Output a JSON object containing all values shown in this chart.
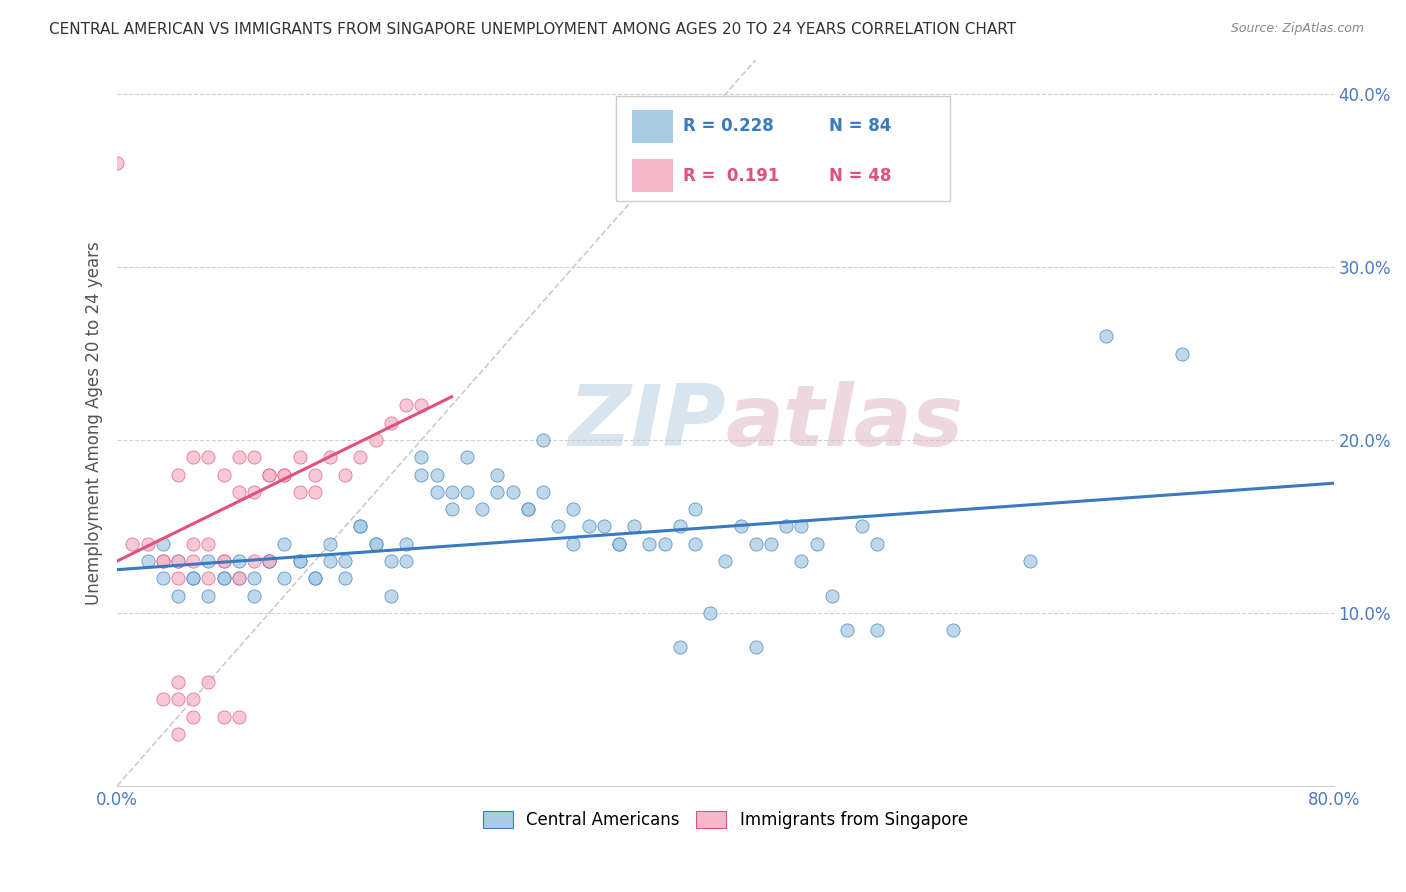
{
  "title": "CENTRAL AMERICAN VS IMMIGRANTS FROM SINGAPORE UNEMPLOYMENT AMONG AGES 20 TO 24 YEARS CORRELATION CHART",
  "source": "Source: ZipAtlas.com",
  "ylabel": "Unemployment Among Ages 20 to 24 years",
  "xlim": [
    0.0,
    0.8
  ],
  "ylim": [
    0.0,
    0.42
  ],
  "xticks": [
    0.0,
    0.1,
    0.2,
    0.3,
    0.4,
    0.5,
    0.6,
    0.7,
    0.8
  ],
  "xticklabels": [
    "0.0%",
    "",
    "",
    "",
    "",
    "",
    "",
    "",
    "80.0%"
  ],
  "yticks": [
    0.0,
    0.1,
    0.2,
    0.3,
    0.4
  ],
  "yticklabels": [
    "",
    "10.0%",
    "20.0%",
    "30.0%",
    "40.0%"
  ],
  "color_blue": "#a8cce4",
  "color_pink": "#f4b8c8",
  "line_blue": "#3a7bbf",
  "line_pink": "#e05080",
  "diag_color": "#cccccc",
  "watermark_color": "#d0dce8",
  "watermark_color2": "#e8d0d8",
  "blue_scatter_x": [
    0.02,
    0.03,
    0.04,
    0.05,
    0.06,
    0.07,
    0.08,
    0.09,
    0.1,
    0.11,
    0.12,
    0.13,
    0.14,
    0.15,
    0.16,
    0.17,
    0.18,
    0.19,
    0.2,
    0.21,
    0.22,
    0.23,
    0.24,
    0.25,
    0.26,
    0.27,
    0.28,
    0.29,
    0.3,
    0.31,
    0.32,
    0.33,
    0.34,
    0.35,
    0.36,
    0.37,
    0.38,
    0.39,
    0.4,
    0.41,
    0.42,
    0.43,
    0.44,
    0.45,
    0.46,
    0.47,
    0.48,
    0.49,
    0.5,
    0.55,
    0.6,
    0.65,
    0.7,
    0.03,
    0.04,
    0.05,
    0.06,
    0.07,
    0.08,
    0.09,
    0.1,
    0.11,
    0.12,
    0.13,
    0.14,
    0.15,
    0.16,
    0.17,
    0.18,
    0.19,
    0.2,
    0.21,
    0.22,
    0.23,
    0.25,
    0.27,
    0.3,
    0.33,
    0.37,
    0.42,
    0.5,
    0.38,
    0.45,
    0.28
  ],
  "blue_scatter_y": [
    0.13,
    0.14,
    0.13,
    0.12,
    0.13,
    0.12,
    0.13,
    0.12,
    0.13,
    0.14,
    0.13,
    0.12,
    0.14,
    0.13,
    0.15,
    0.14,
    0.13,
    0.14,
    0.18,
    0.17,
    0.16,
    0.17,
    0.16,
    0.18,
    0.17,
    0.16,
    0.17,
    0.15,
    0.16,
    0.15,
    0.15,
    0.14,
    0.15,
    0.14,
    0.14,
    0.15,
    0.14,
    0.1,
    0.13,
    0.15,
    0.14,
    0.14,
    0.15,
    0.13,
    0.14,
    0.11,
    0.09,
    0.15,
    0.14,
    0.09,
    0.13,
    0.26,
    0.25,
    0.12,
    0.11,
    0.12,
    0.11,
    0.12,
    0.12,
    0.11,
    0.13,
    0.12,
    0.13,
    0.12,
    0.13,
    0.12,
    0.15,
    0.14,
    0.11,
    0.13,
    0.19,
    0.18,
    0.17,
    0.19,
    0.17,
    0.16,
    0.14,
    0.14,
    0.08,
    0.08,
    0.09,
    0.16,
    0.15,
    0.2
  ],
  "pink_scatter_x": [
    0.0,
    0.01,
    0.02,
    0.03,
    0.04,
    0.05,
    0.06,
    0.07,
    0.08,
    0.09,
    0.1,
    0.11,
    0.12,
    0.13,
    0.14,
    0.15,
    0.16,
    0.17,
    0.18,
    0.19,
    0.2,
    0.04,
    0.05,
    0.06,
    0.07,
    0.08,
    0.09,
    0.1,
    0.11,
    0.12,
    0.13,
    0.03,
    0.04,
    0.05,
    0.06,
    0.07,
    0.08,
    0.09,
    0.1,
    0.04,
    0.05,
    0.06,
    0.07,
    0.08,
    0.04,
    0.05,
    0.03,
    0.04
  ],
  "pink_scatter_y": [
    0.36,
    0.14,
    0.14,
    0.13,
    0.13,
    0.14,
    0.14,
    0.13,
    0.19,
    0.19,
    0.18,
    0.18,
    0.19,
    0.18,
    0.19,
    0.18,
    0.19,
    0.2,
    0.21,
    0.22,
    0.22,
    0.18,
    0.19,
    0.19,
    0.18,
    0.17,
    0.17,
    0.18,
    0.18,
    0.17,
    0.17,
    0.13,
    0.12,
    0.13,
    0.12,
    0.13,
    0.12,
    0.13,
    0.13,
    0.05,
    0.05,
    0.06,
    0.04,
    0.04,
    0.03,
    0.04,
    0.05,
    0.06
  ]
}
